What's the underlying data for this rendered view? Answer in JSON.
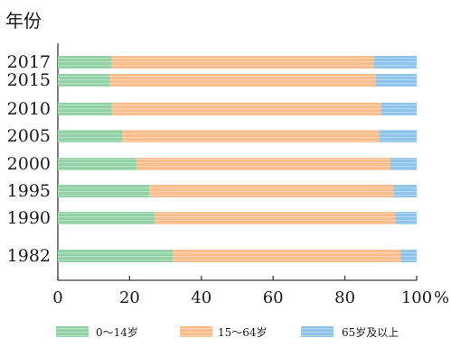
{
  "chart_data": {
    "type": "bar",
    "orientation": "horizontal",
    "stacked": true,
    "title": "",
    "ylabel": "年份",
    "xlabel": "",
    "xlim": [
      0,
      100
    ],
    "x_ticks": [
      "0",
      "20",
      "40",
      "60",
      "80",
      "100"
    ],
    "x_unit": "%",
    "grid": false,
    "legend_position": "bottom",
    "categories": [
      "2017",
      "2015",
      "2010",
      "2005",
      "2000",
      "1995",
      "1990",
      "1982"
    ],
    "series": [
      {
        "name": "0～14岁",
        "color": "#8fd0a4",
        "values": [
          15,
          14.5,
          15,
          18,
          22,
          25.5,
          27,
          32
        ]
      },
      {
        "name": "15～64岁",
        "color": "#fbbc8a",
        "values": [
          73,
          74,
          75,
          71.5,
          70.5,
          68,
          67,
          63.5
        ]
      },
      {
        "name": "65岁及以上",
        "color": "#8dc3ea",
        "values": [
          12,
          11.5,
          10,
          10.5,
          7.5,
          6.5,
          6,
          4.5
        ]
      }
    ]
  }
}
